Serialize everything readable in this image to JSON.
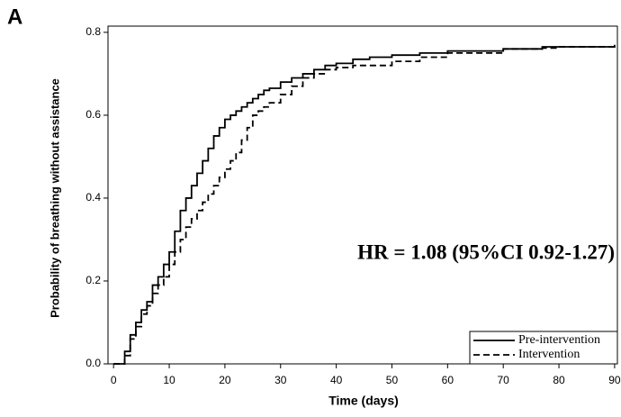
{
  "chart_data": {
    "type": "step",
    "panel_label": "A",
    "xlabel": "Time (days)",
    "ylabel": "Probability of breathing without assistance",
    "annotation": "HR = 1.08 (95%CI 0.92-1.27)",
    "x": [
      0,
      1,
      2,
      3,
      4,
      5,
      6,
      7,
      8,
      9,
      10,
      11,
      12,
      13,
      14,
      15,
      16,
      17,
      18,
      19,
      20,
      21,
      22,
      23,
      24,
      25,
      26,
      27,
      28,
      30,
      32,
      34,
      36,
      38,
      40,
      43,
      46,
      50,
      55,
      60,
      70,
      77,
      80,
      90
    ],
    "series": [
      {
        "name": "Pre-intervention",
        "color": "#000000",
        "line_style": "solid",
        "values": [
          0,
          0,
          0.03,
          0.07,
          0.1,
          0.13,
          0.15,
          0.19,
          0.21,
          0.24,
          0.27,
          0.32,
          0.37,
          0.4,
          0.43,
          0.46,
          0.49,
          0.52,
          0.55,
          0.57,
          0.59,
          0.6,
          0.61,
          0.62,
          0.63,
          0.64,
          0.65,
          0.66,
          0.665,
          0.68,
          0.69,
          0.7,
          0.71,
          0.72,
          0.725,
          0.735,
          0.74,
          0.745,
          0.75,
          0.755,
          0.76,
          0.765,
          0.765,
          0.77
        ]
      },
      {
        "name": "Intervention",
        "color": "#000000",
        "line_style": "dashed",
        "values": [
          0,
          0,
          0.02,
          0.06,
          0.09,
          0.12,
          0.14,
          0.17,
          0.19,
          0.21,
          0.24,
          0.27,
          0.3,
          0.33,
          0.35,
          0.37,
          0.39,
          0.41,
          0.43,
          0.45,
          0.47,
          0.49,
          0.51,
          0.54,
          0.57,
          0.6,
          0.61,
          0.62,
          0.63,
          0.65,
          0.67,
          0.69,
          0.7,
          0.71,
          0.715,
          0.72,
          0.72,
          0.73,
          0.74,
          0.75,
          0.76,
          0.762,
          0.765,
          0.77
        ]
      }
    ],
    "xlim": [
      -1,
      90.5
    ],
    "ylim": [
      0,
      0.815
    ],
    "xticks": [
      0,
      10,
      20,
      30,
      40,
      50,
      60,
      70,
      80,
      90
    ],
    "yticks": [
      {
        "value": 0,
        "label": "0.0"
      },
      0.2,
      0.4,
      0.6,
      0.8
    ],
    "legend": "lower right"
  }
}
